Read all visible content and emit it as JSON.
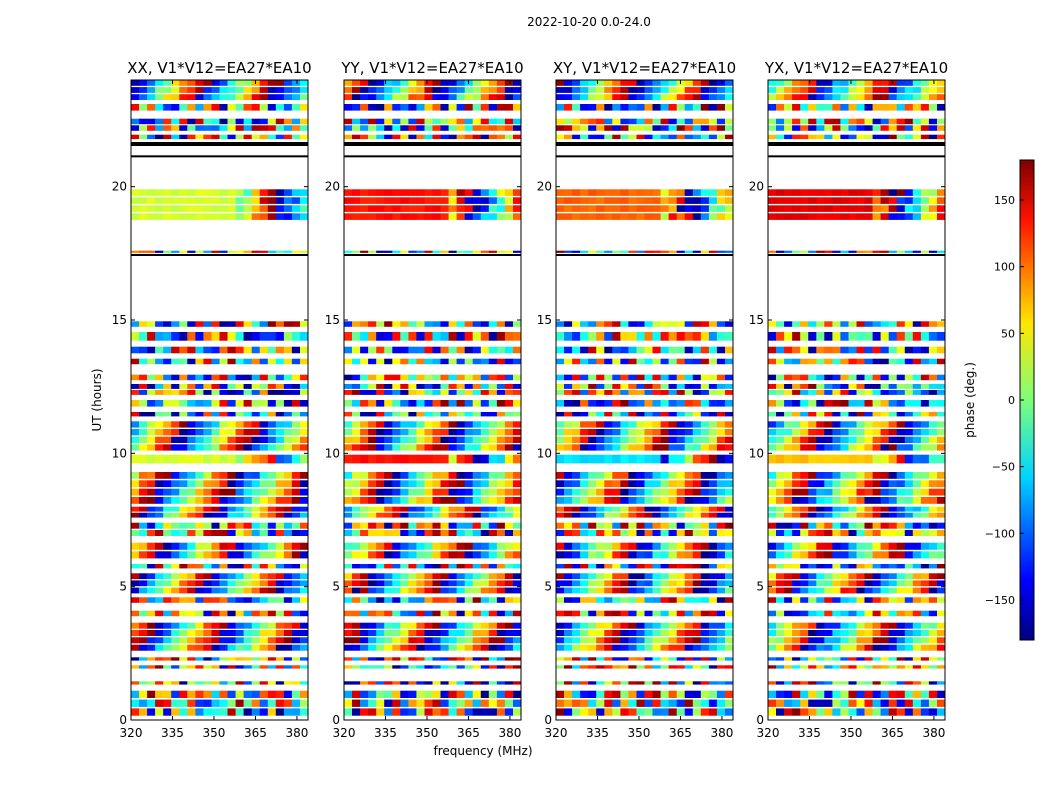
{
  "figure": {
    "suptitle": "2022-10-20 0.0-24.0",
    "ylabel": "UT (hours)",
    "xlabel": "frequency (MHz)"
  },
  "colorbar": {
    "label": "phase (deg.)",
    "colormap": "jet",
    "range": [
      -180,
      180
    ],
    "ticks": [
      -150,
      -100,
      -50,
      0,
      50,
      100,
      150
    ],
    "tick_labels": [
      "−150",
      "−100",
      "−50",
      "0",
      "50",
      "100",
      "150"
    ]
  },
  "chart_data": [
    {
      "type": "heatmap",
      "title": "XX, V1*V12=EA27*EA10",
      "xlabel": "frequency (MHz)",
      "ylabel": "UT (hours)",
      "xlim": [
        320,
        384
      ],
      "ylim": [
        0,
        24
      ],
      "xticks": [
        320,
        335,
        350,
        365,
        380
      ],
      "yticks": [
        0,
        5,
        10,
        15,
        20
      ],
      "value": "phase (deg.)"
    },
    {
      "type": "heatmap",
      "title": "YY, V1*V12=EA27*EA10",
      "xlabel": "frequency (MHz)",
      "ylabel": "UT (hours)",
      "xlim": [
        320,
        384
      ],
      "ylim": [
        0,
        24
      ],
      "xticks": [
        320,
        335,
        350,
        365,
        380
      ],
      "yticks": [
        0,
        5,
        10,
        15,
        20
      ],
      "value": "phase (deg.)"
    },
    {
      "type": "heatmap",
      "title": "XY, V1*V12=EA27*EA10",
      "xlabel": "frequency (MHz)",
      "ylabel": "UT (hours)",
      "xlim": [
        320,
        384
      ],
      "ylim": [
        0,
        24
      ],
      "xticks": [
        320,
        335,
        350,
        365,
        380
      ],
      "yticks": [
        0,
        5,
        10,
        15,
        20
      ],
      "value": "phase (deg.)"
    },
    {
      "type": "heatmap",
      "title": "YX, V1*V12=EA27*EA10",
      "xlabel": "frequency (MHz)",
      "ylabel": "UT (hours)",
      "xlim": [
        320,
        384
      ],
      "ylim": [
        0,
        24
      ],
      "xticks": [
        320,
        335,
        350,
        365,
        380
      ],
      "yticks": [
        0,
        5,
        10,
        15,
        20
      ],
      "value": "phase (deg.)"
    }
  ]
}
